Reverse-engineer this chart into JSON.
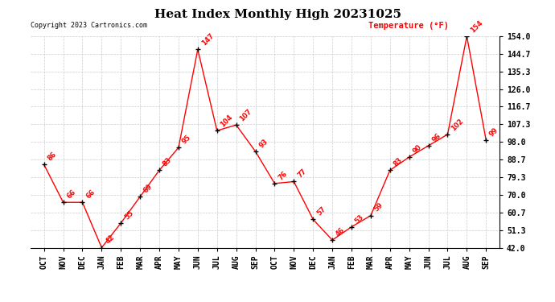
{
  "title": "Heat Index Monthly High 20231025",
  "copyright": "Copyright 2023 Cartronics.com",
  "legend_text": "Temperature (°F)",
  "x_labels": [
    "OCT",
    "NOV",
    "DEC",
    "JAN",
    "FEB",
    "MAR",
    "APR",
    "MAY",
    "JUN",
    "JUL",
    "AUG",
    "SEP",
    "OCT",
    "NOV",
    "DEC",
    "JAN",
    "FEB",
    "MAR",
    "APR",
    "MAY",
    "JUN",
    "JUL",
    "AUG",
    "SEP"
  ],
  "y_values": [
    86,
    66,
    66,
    42,
    55,
    69,
    83,
    95,
    147,
    104,
    107,
    93,
    76,
    77,
    57,
    46,
    53,
    59,
    83,
    90,
    96,
    102,
    154,
    99
  ],
  "point_labels": [
    "86",
    "66",
    "66",
    "42",
    "55",
    "69",
    "83",
    "95",
    "147",
    "104",
    "107",
    "93",
    "76",
    "77",
    "57",
    "46",
    "53",
    "59",
    "83",
    "90",
    "96",
    "102",
    "154",
    "99"
  ],
  "y_min": 42.0,
  "y_max": 154.0,
  "y_ticks": [
    42.0,
    51.3,
    60.7,
    70.0,
    79.3,
    88.7,
    98.0,
    107.3,
    116.7,
    126.0,
    135.3,
    144.7,
    154.0
  ],
  "line_color": "#ff0000",
  "marker_color": "#000000",
  "text_color": "#ff0000",
  "grid_color": "#cccccc",
  "bg_color": "#ffffff",
  "title_fontsize": 11,
  "copyright_fontsize": 6,
  "legend_fontsize": 7.5,
  "tick_fontsize": 7,
  "point_label_fontsize": 6
}
